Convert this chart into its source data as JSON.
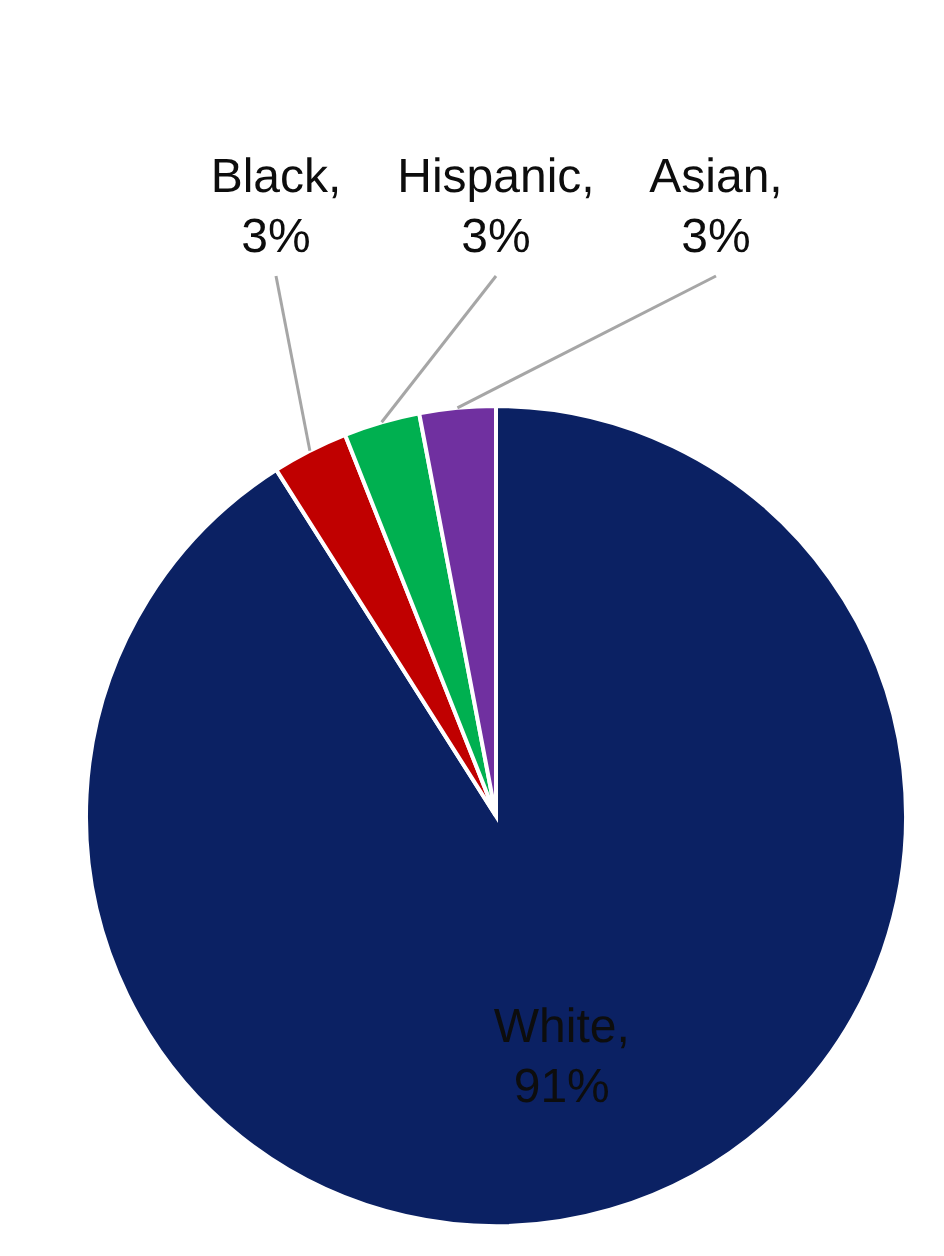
{
  "chart_data": {
    "type": "pie",
    "categories": [
      "White",
      "Black",
      "Hispanic",
      "Asian"
    ],
    "values": [
      91,
      3,
      3,
      3
    ],
    "colors": [
      "#0b2163",
      "#c00000",
      "#00b050",
      "#7030a0"
    ],
    "value_labels": [
      ", 91%",
      ", 3%",
      ", 3%",
      ", 3%"
    ]
  }
}
